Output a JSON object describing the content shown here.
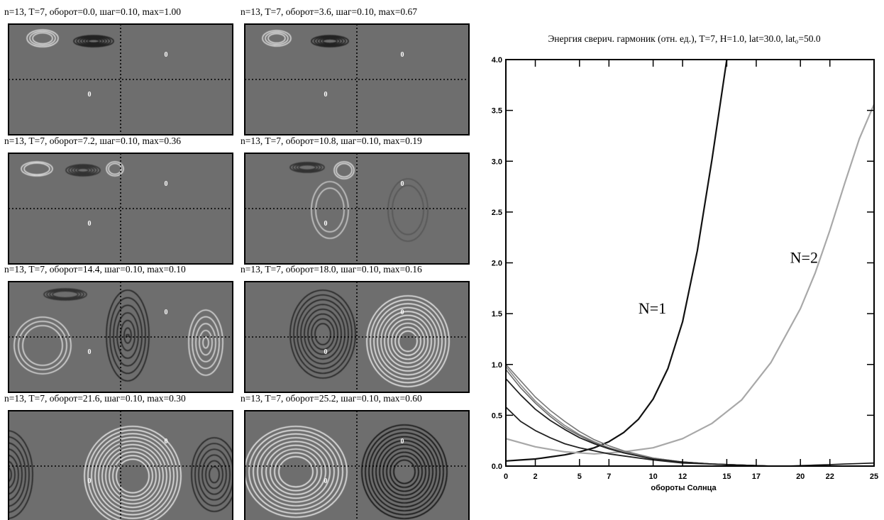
{
  "panels": [
    {
      "title": "n=13, T=7, оборот=0.0, шаг=0.10, max=1.00",
      "n": 13,
      "T": 7,
      "turn": 0.0,
      "step": 0.1,
      "max": 1.0,
      "zero_labels": [
        "0",
        "0"
      ]
    },
    {
      "title": "n=13, T=7, оборот=3.6, шаг=0.10, max=0.67",
      "n": 13,
      "T": 7,
      "turn": 3.6,
      "step": 0.1,
      "max": 0.67,
      "zero_labels": [
        "0",
        "0"
      ]
    },
    {
      "title": "n=13, T=7, оборот=7.2, шаг=0.10, max=0.36",
      "n": 13,
      "T": 7,
      "turn": 7.2,
      "step": 0.1,
      "max": 0.36,
      "zero_labels": [
        "0",
        "0"
      ]
    },
    {
      "title": "n=13, T=7, оборот=10.8, шаг=0.10, max=0.19",
      "n": 13,
      "T": 7,
      "turn": 10.8,
      "step": 0.1,
      "max": 0.19,
      "zero_labels": [
        "0",
        "0"
      ]
    },
    {
      "title": "n=13, T=7, оборот=14.4, шаг=0.10, max=0.10",
      "n": 13,
      "T": 7,
      "turn": 14.4,
      "step": 0.1,
      "max": 0.1,
      "zero_labels": [
        "0",
        "0"
      ]
    },
    {
      "title": "n=13, T=7, оборот=18.0, шаг=0.10, max=0.16",
      "n": 13,
      "T": 7,
      "turn": 18.0,
      "step": 0.1,
      "max": 0.16,
      "zero_labels": [
        "0",
        "0"
      ]
    },
    {
      "title": "n=13, T=7, оборот=21.6, шаг=0.10, max=0.30",
      "n": 13,
      "T": 7,
      "turn": 21.6,
      "step": 0.1,
      "max": 0.3,
      "zero_labels": [
        "0",
        "0"
      ]
    },
    {
      "title": "n=13, T=7, оборот=25.2, шаг=0.10, max=0.60",
      "n": 13,
      "T": 7,
      "turn": 25.2,
      "step": 0.1,
      "max": 0.6,
      "zero_labels": [
        "0",
        "0"
      ]
    }
  ],
  "chart_data": {
    "type": "line",
    "title": "Энергия сверич. гармоник (отн.   ед.), T=7, H=1.0, lat=30.0, lat₀=50.0",
    "xlabel": "обороты Солнца",
    "ylabel": "",
    "xlim": [
      0,
      25
    ],
    "ylim": [
      0,
      4.0
    ],
    "x_ticks": [
      0,
      2,
      5,
      7,
      10,
      12,
      15,
      17,
      20,
      22,
      25
    ],
    "y_ticks": [
      0.0,
      0.5,
      1.0,
      1.5,
      2.0,
      2.5,
      3.0,
      3.5,
      4.0
    ],
    "y_tick_labels": [
      "0.0",
      "0.5",
      "1.0",
      "1.5",
      "2.0",
      "2.5",
      "3.0",
      "3.5",
      "4.0"
    ],
    "grid": false,
    "series": [
      {
        "name": "N=1",
        "color": "#111111",
        "width": 2.2,
        "x": [
          0,
          1,
          2,
          3,
          4,
          5,
          6,
          7,
          8,
          9,
          10,
          11,
          12,
          13,
          14,
          15
        ],
        "y": [
          0.05,
          0.06,
          0.07,
          0.09,
          0.11,
          0.14,
          0.18,
          0.24,
          0.33,
          0.46,
          0.66,
          0.96,
          1.42,
          2.12,
          3.02,
          4.0
        ]
      },
      {
        "name": "N=2",
        "color": "#a8a8a8",
        "width": 2.2,
        "x": [
          0,
          2,
          4,
          6,
          8,
          10,
          12,
          14,
          16,
          18,
          20,
          21,
          22,
          23,
          24,
          25
        ],
        "y": [
          0.27,
          0.19,
          0.14,
          0.12,
          0.14,
          0.18,
          0.27,
          0.42,
          0.65,
          1.02,
          1.55,
          1.9,
          2.32,
          2.78,
          3.22,
          3.56
        ]
      },
      {
        "name": "",
        "color": "#777777",
        "width": 1.6,
        "x": [
          0,
          1,
          2,
          3,
          4,
          5,
          6,
          7,
          8,
          10,
          12,
          14,
          16,
          18,
          20,
          25
        ],
        "y": [
          1.0,
          0.84,
          0.68,
          0.55,
          0.44,
          0.34,
          0.26,
          0.2,
          0.15,
          0.08,
          0.04,
          0.02,
          0.01,
          0.0,
          0.0,
          0.0
        ]
      },
      {
        "name": "",
        "color": "#888888",
        "width": 1.6,
        "x": [
          0,
          1,
          2,
          3,
          4,
          5,
          6,
          7,
          8,
          10,
          12,
          14,
          16,
          18,
          20,
          25
        ],
        "y": [
          0.98,
          0.8,
          0.64,
          0.51,
          0.4,
          0.31,
          0.24,
          0.18,
          0.14,
          0.08,
          0.04,
          0.02,
          0.01,
          0.0,
          0.0,
          0.0
        ]
      },
      {
        "name": "",
        "color": "#6a6a6a",
        "width": 1.6,
        "x": [
          0,
          1,
          2,
          3,
          4,
          5,
          6,
          7,
          8,
          10,
          12,
          14,
          16,
          18,
          20,
          25
        ],
        "y": [
          0.95,
          0.77,
          0.62,
          0.49,
          0.38,
          0.3,
          0.23,
          0.18,
          0.13,
          0.07,
          0.04,
          0.02,
          0.01,
          0.0,
          0.0,
          0.0
        ]
      },
      {
        "name": "",
        "color": "#222222",
        "width": 1.8,
        "x": [
          0,
          1,
          2,
          3,
          4,
          5,
          6,
          7,
          8,
          10,
          12,
          14,
          16,
          18,
          20,
          25
        ],
        "y": [
          0.86,
          0.7,
          0.56,
          0.45,
          0.36,
          0.28,
          0.22,
          0.17,
          0.13,
          0.07,
          0.04,
          0.02,
          0.01,
          0.0,
          0.0,
          0.0
        ]
      },
      {
        "name": "",
        "color": "#222222",
        "width": 1.8,
        "x": [
          0,
          1,
          2,
          3,
          4,
          5,
          6,
          7,
          8,
          10,
          12,
          14,
          16,
          18,
          20,
          25
        ],
        "y": [
          0.58,
          0.44,
          0.35,
          0.28,
          0.22,
          0.18,
          0.15,
          0.12,
          0.1,
          0.06,
          0.03,
          0.02,
          0.01,
          0.0,
          0.0,
          0.0
        ]
      },
      {
        "name": "",
        "color": "#111111",
        "width": 1.6,
        "x": [
          0,
          5,
          10,
          15,
          17,
          18,
          19,
          20,
          21,
          22,
          23,
          24,
          25
        ],
        "y": [
          0.0,
          0.0,
          0.0,
          0.0,
          0.0,
          0.0,
          0.0,
          0.005,
          0.01,
          0.015,
          0.02,
          0.025,
          0.03
        ]
      }
    ],
    "annotations": [
      {
        "text": "N=1",
        "x": 9.0,
        "y": 1.5
      },
      {
        "text": "N=2",
        "x": 19.3,
        "y": 2.0
      }
    ]
  }
}
